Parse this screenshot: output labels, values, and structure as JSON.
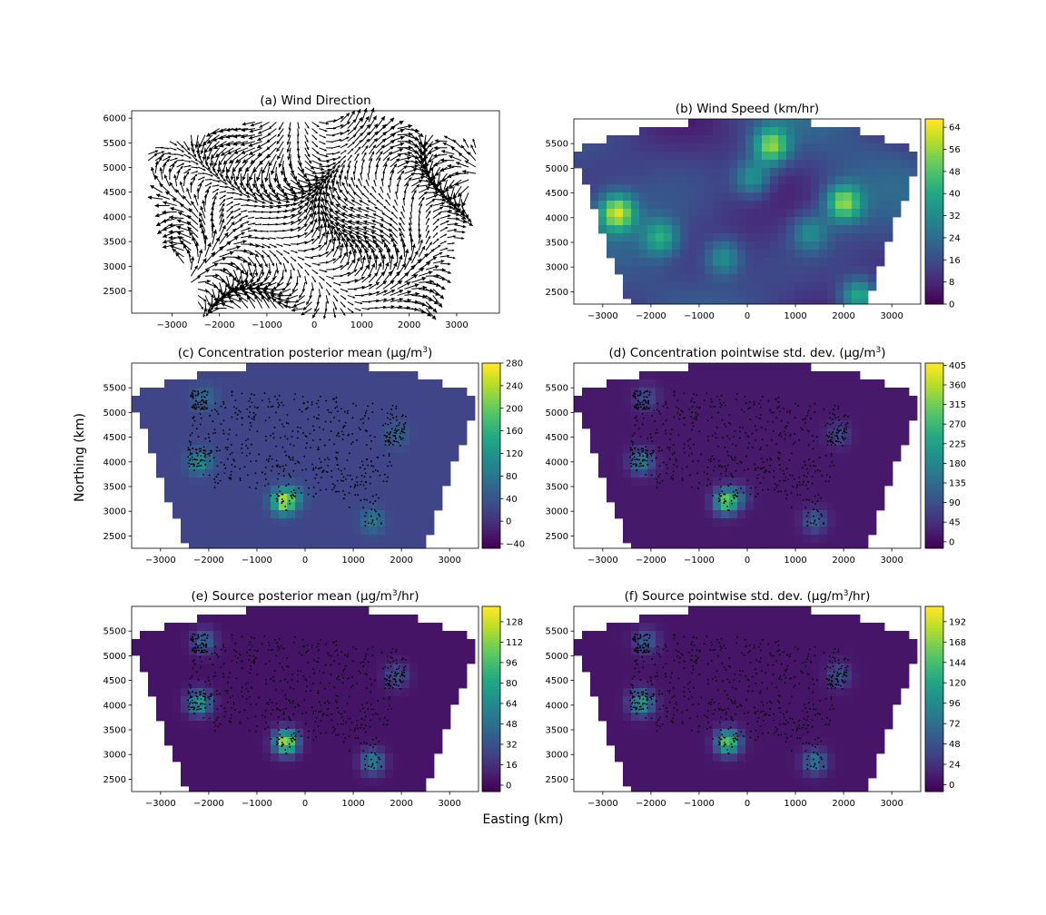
{
  "figure": {
    "xlabel": "Easting (km)",
    "ylabel": "Northing (km)"
  },
  "chart_data": [
    {
      "type": "quiver",
      "panel": "a",
      "title": "(a) Wind Direction",
      "xlim": [
        -3850,
        3900
      ],
      "ylim": [
        2050,
        6150
      ],
      "xticks": [
        -3000,
        -2000,
        -1000,
        0,
        1000,
        2000,
        3000
      ],
      "yticks": [
        2500,
        3000,
        3500,
        4000,
        4500,
        5000,
        5500,
        6000
      ],
      "domain_hint": "trapezoid, wider at south (bottom)",
      "grid": false
    },
    {
      "type": "heatmap",
      "panel": "b",
      "title": "(b) Wind Speed (km/hr)",
      "xlim": [
        -3600,
        3600
      ],
      "ylim": [
        2250,
        6000
      ],
      "xticks": [
        -3000,
        -2000,
        -1000,
        0,
        1000,
        2000,
        3000
      ],
      "yticks": [
        2500,
        3000,
        3500,
        4000,
        4500,
        5000,
        5500
      ],
      "colorbar": {
        "min": 0,
        "max": 67,
        "ticks": [
          0,
          8,
          16,
          24,
          32,
          40,
          48,
          56,
          64
        ]
      },
      "hotspots": [
        {
          "x": -2700,
          "y": 4100,
          "value": 60
        },
        {
          "x": 500,
          "y": 5450,
          "value": 55
        },
        {
          "x": 2000,
          "y": 4300,
          "value": 55
        },
        {
          "x": -1800,
          "y": 3600,
          "value": 40
        },
        {
          "x": 2300,
          "y": 2400,
          "value": 45
        },
        {
          "x": 100,
          "y": 4800,
          "value": 38
        },
        {
          "x": -500,
          "y": 3200,
          "value": 36
        },
        {
          "x": 1300,
          "y": 3700,
          "value": 34
        }
      ],
      "grid": false
    },
    {
      "type": "heatmap",
      "panel": "c",
      "title": "(c) Concentration posterior mean (μg/m",
      "title_sup": "3",
      "title_end": ")",
      "xlim": [
        -3600,
        3600
      ],
      "ylim": [
        2250,
        6000
      ],
      "xticks": [
        -3000,
        -2000,
        -1000,
        0,
        1000,
        2000,
        3000
      ],
      "yticks": [
        2500,
        3000,
        3500,
        4000,
        4500,
        5000,
        5500
      ],
      "colorbar": {
        "min": -48,
        "max": 280,
        "ticks": [
          -40,
          0,
          40,
          80,
          120,
          160,
          200,
          240,
          280
        ]
      },
      "background": 20,
      "hotspots": [
        {
          "x": -450,
          "y": 3200,
          "value": 240
        },
        {
          "x": -2200,
          "y": 4000,
          "value": 120
        },
        {
          "x": 1400,
          "y": 2800,
          "value": 90
        },
        {
          "x": -200,
          "y": 3300,
          "value": 70
        },
        {
          "x": -2100,
          "y": 5300,
          "value": 70
        },
        {
          "x": 1900,
          "y": 4550,
          "value": 60
        }
      ],
      "stations": true,
      "grid": false
    },
    {
      "type": "heatmap",
      "panel": "d",
      "title": "(d) Concentration pointwise std. dev. (μg/m",
      "title_sup": "3",
      "title_end": ")",
      "xlim": [
        -3600,
        3600
      ],
      "ylim": [
        2250,
        6000
      ],
      "xticks": [
        -3000,
        -2000,
        -1000,
        0,
        1000,
        2000,
        3000
      ],
      "yticks": [
        2500,
        3000,
        3500,
        4000,
        4500,
        5000,
        5500
      ],
      "colorbar": {
        "min": -15,
        "max": 410,
        "ticks": [
          0,
          45,
          90,
          135,
          180,
          225,
          270,
          315,
          360,
          405
        ]
      },
      "background": 15,
      "hotspots": [
        {
          "x": -450,
          "y": 3200,
          "value": 300
        },
        {
          "x": -2200,
          "y": 4000,
          "value": 170
        },
        {
          "x": 1400,
          "y": 2800,
          "value": 120
        },
        {
          "x": -200,
          "y": 3300,
          "value": 100
        },
        {
          "x": -2100,
          "y": 5300,
          "value": 90
        },
        {
          "x": 1900,
          "y": 4550,
          "value": 80
        }
      ],
      "stations": true,
      "grid": false
    },
    {
      "type": "heatmap",
      "panel": "e",
      "title": "(e) Source posterior mean (μg/m",
      "title_sup": "3",
      "title_end": "/hr)",
      "xlim": [
        -3600,
        3600
      ],
      "ylim": [
        2250,
        6000
      ],
      "xticks": [
        -3000,
        -2000,
        -1000,
        0,
        1000,
        2000,
        3000
      ],
      "yticks": [
        2500,
        3000,
        3500,
        4000,
        4500,
        5000,
        5500
      ],
      "colorbar": {
        "min": -5,
        "max": 140,
        "ticks": [
          0,
          16,
          32,
          48,
          64,
          80,
          96,
          112,
          128
        ]
      },
      "background": 3,
      "hotspots": [
        {
          "x": -400,
          "y": 3250,
          "value": 125
        },
        {
          "x": -2200,
          "y": 4050,
          "value": 80
        },
        {
          "x": 1400,
          "y": 2850,
          "value": 60
        },
        {
          "x": -2100,
          "y": 5300,
          "value": 45
        },
        {
          "x": 1900,
          "y": 4600,
          "value": 35
        }
      ],
      "stations": true,
      "grid": false
    },
    {
      "type": "heatmap",
      "panel": "f",
      "title": "(f) Source pointwise std. dev. (μg/m",
      "title_sup": "3",
      "title_end": "/hr)",
      "xlim": [
        -3600,
        3600
      ],
      "ylim": [
        2250,
        6000
      ],
      "xticks": [
        -3000,
        -2000,
        -1000,
        0,
        1000,
        2000,
        3000
      ],
      "yticks": [
        2500,
        3000,
        3500,
        4000,
        4500,
        5000,
        5500
      ],
      "colorbar": {
        "min": -8,
        "max": 210,
        "ticks": [
          0,
          24,
          48,
          72,
          96,
          120,
          144,
          168,
          192
        ]
      },
      "background": 5,
      "hotspots": [
        {
          "x": -400,
          "y": 3250,
          "value": 160
        },
        {
          "x": -2200,
          "y": 4050,
          "value": 120
        },
        {
          "x": 1400,
          "y": 2850,
          "value": 80
        },
        {
          "x": -2100,
          "y": 5300,
          "value": 60
        },
        {
          "x": 1900,
          "y": 4600,
          "value": 50
        }
      ],
      "stations": true,
      "grid": false
    }
  ]
}
